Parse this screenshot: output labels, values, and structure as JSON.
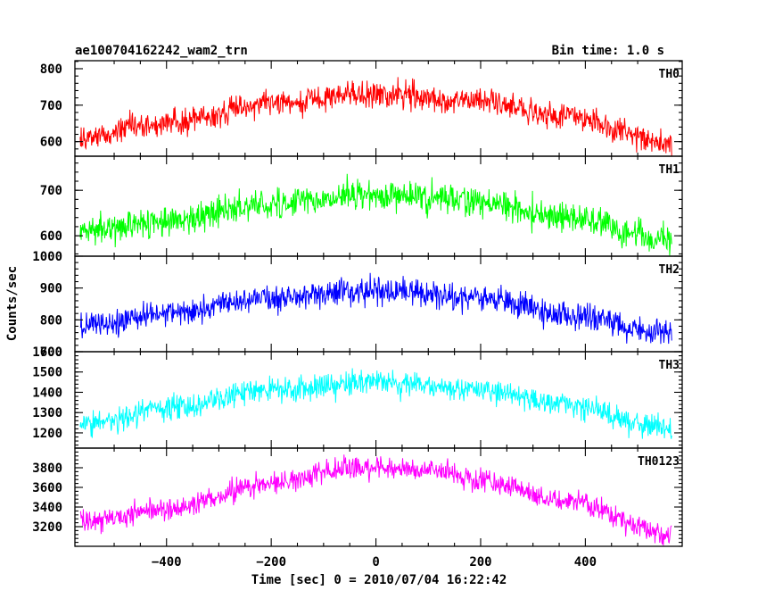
{
  "chart_data": {
    "type": "line",
    "title_left": "ae100704162242_wam2_trn",
    "title_right": "Bin time: 1.0 s",
    "xlabel": "Time [sec] 0 = 2010/07/04 16:22:42",
    "ylabel": "Counts/sec",
    "xlim": [
      -575,
      585
    ],
    "x_ticks": [
      -400,
      -200,
      0,
      200,
      400
    ],
    "x_range": [
      -565,
      565
    ],
    "x_step": 1,
    "panels": [
      {
        "name": "TH0",
        "color": "#ff0000",
        "ylim": [
          560,
          822
        ],
        "y_ticks": [
          600,
          700,
          800
        ],
        "profile_x": [
          -565,
          -400,
          -200,
          0,
          200,
          350,
          565
        ],
        "profile_y": [
          615,
          655,
          705,
          730,
          710,
          670,
          600
        ],
        "noise_amplitude": 32
      },
      {
        "name": "TH1",
        "color": "#00ff00",
        "ylim": [
          555,
          775
        ],
        "y_ticks": [
          600,
          700
        ],
        "profile_x": [
          -565,
          -400,
          -200,
          0,
          200,
          350,
          565
        ],
        "profile_y": [
          610,
          630,
          670,
          690,
          675,
          640,
          590
        ],
        "noise_amplitude": 30
      },
      {
        "name": "TH2",
        "color": "#0000ff",
        "ylim": [
          700,
          1000
        ],
        "y_ticks": [
          700,
          800,
          900,
          1000
        ],
        "profile_x": [
          -565,
          -400,
          -200,
          0,
          200,
          350,
          565
        ],
        "profile_y": [
          775,
          820,
          870,
          890,
          870,
          820,
          760
        ],
        "noise_amplitude": 38
      },
      {
        "name": "TH3",
        "color": "#00ffff",
        "ylim": [
          1125,
          1600
        ],
        "y_ticks": [
          1200,
          1300,
          1400,
          1500,
          1600
        ],
        "profile_x": [
          -565,
          -400,
          -200,
          0,
          200,
          350,
          565
        ],
        "profile_y": [
          1240,
          1320,
          1410,
          1450,
          1410,
          1340,
          1220
        ],
        "noise_amplitude": 55
      },
      {
        "name": "TH0123",
        "color": "#ff00ff",
        "ylim": [
          3000,
          4000
        ],
        "y_ticks": [
          3200,
          3400,
          3600,
          3800
        ],
        "profile_x": [
          -565,
          -400,
          -200,
          -100,
          0,
          100,
          200,
          350,
          565
        ],
        "profile_y": [
          3240,
          3380,
          3640,
          3760,
          3800,
          3780,
          3660,
          3480,
          3120
        ],
        "noise_amplitude": 100
      }
    ]
  }
}
